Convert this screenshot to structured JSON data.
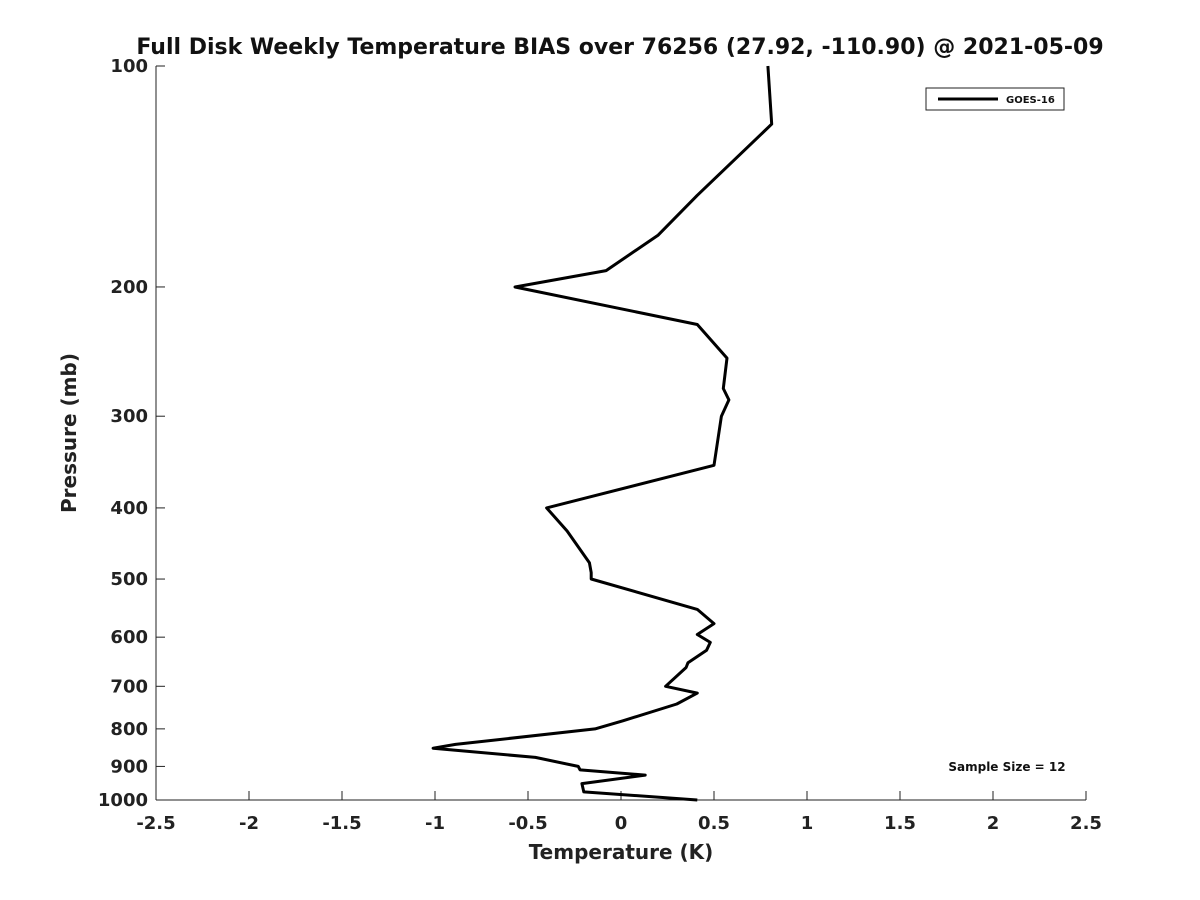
{
  "chart_data": {
    "type": "line",
    "title": "Full Disk Weekly Temperature BIAS over 76256 (27.92, -110.90) @ 2021-05-09",
    "xlabel": "Temperature (K)",
    "ylabel": "Pressure (mb)",
    "xlim": [
      -2.5,
      2.5
    ],
    "ylim": [
      100,
      1000
    ],
    "y_scale": "log",
    "y_reversed": true,
    "x_ticks": [
      "-2.5",
      "-2",
      "-1.5",
      "-1",
      "-0.5",
      "0",
      "0.5",
      "1",
      "1.5",
      "2",
      "2.5"
    ],
    "y_ticks": [
      "100",
      "200",
      "300",
      "400",
      "500",
      "600",
      "700",
      "800",
      "900",
      "1000"
    ],
    "grid": false,
    "legend_position": "top-right",
    "series": [
      {
        "name": "GOES-16",
        "color": "#000000",
        "points": [
          {
            "x": 0.79,
            "y": 100
          },
          {
            "x": 0.81,
            "y": 120
          },
          {
            "x": 0.41,
            "y": 150
          },
          {
            "x": 0.2,
            "y": 170
          },
          {
            "x": -0.08,
            "y": 190
          },
          {
            "x": -0.57,
            "y": 200
          },
          {
            "x": 0.41,
            "y": 225
          },
          {
            "x": 0.57,
            "y": 250
          },
          {
            "x": 0.55,
            "y": 275
          },
          {
            "x": 0.58,
            "y": 285
          },
          {
            "x": 0.54,
            "y": 300
          },
          {
            "x": 0.5,
            "y": 350
          },
          {
            "x": -0.4,
            "y": 400
          },
          {
            "x": -0.29,
            "y": 430
          },
          {
            "x": -0.17,
            "y": 475
          },
          {
            "x": -0.16,
            "y": 490
          },
          {
            "x": -0.16,
            "y": 500
          },
          {
            "x": 0.41,
            "y": 550
          },
          {
            "x": 0.5,
            "y": 575
          },
          {
            "x": 0.41,
            "y": 595
          },
          {
            "x": 0.48,
            "y": 610
          },
          {
            "x": 0.46,
            "y": 625
          },
          {
            "x": 0.36,
            "y": 650
          },
          {
            "x": 0.35,
            "y": 660
          },
          {
            "x": 0.24,
            "y": 700
          },
          {
            "x": 0.41,
            "y": 715
          },
          {
            "x": 0.3,
            "y": 740
          },
          {
            "x": 0.01,
            "y": 780
          },
          {
            "x": -0.14,
            "y": 800
          },
          {
            "x": -0.89,
            "y": 840
          },
          {
            "x": -1.01,
            "y": 850
          },
          {
            "x": -0.46,
            "y": 875
          },
          {
            "x": -0.23,
            "y": 900
          },
          {
            "x": -0.22,
            "y": 910
          },
          {
            "x": 0.13,
            "y": 925
          },
          {
            "x": -0.21,
            "y": 950
          },
          {
            "x": -0.2,
            "y": 975
          },
          {
            "x": 0.41,
            "y": 1000
          }
        ]
      }
    ],
    "annotation": "Sample Size = 12"
  }
}
